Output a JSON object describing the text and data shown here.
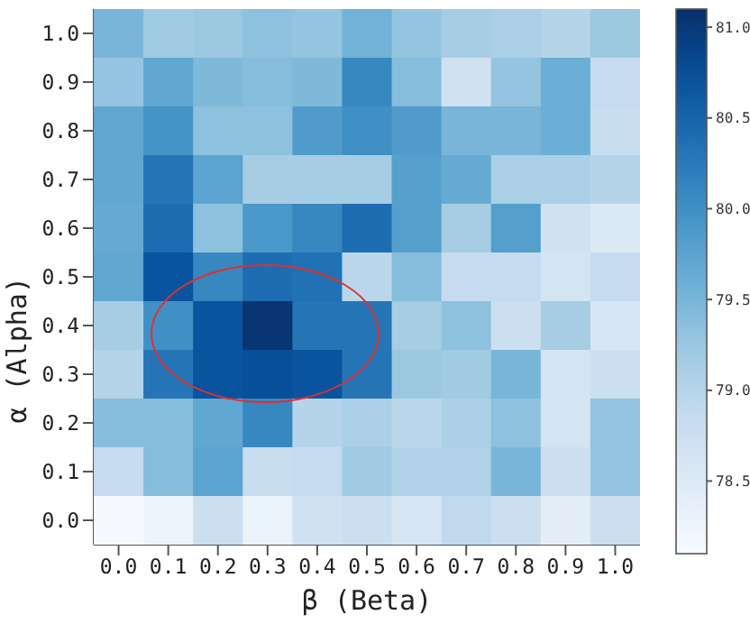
{
  "chart_data": {
    "type": "heatmap",
    "xlabel": "β (Beta)",
    "ylabel": "α (Alpha)",
    "categories": [
      "0.0",
      "0.1",
      "0.2",
      "0.3",
      "0.4",
      "0.5",
      "0.6",
      "0.7",
      "0.8",
      "0.9",
      "1.0"
    ],
    "y_categories": [
      "1.0",
      "0.9",
      "0.8",
      "0.7",
      "0.6",
      "0.5",
      "0.4",
      "0.3",
      "0.2",
      "0.1",
      "0.0"
    ],
    "cells": [
      [
        79.5,
        79.2,
        79.25,
        79.35,
        79.3,
        79.55,
        79.3,
        79.15,
        79.1,
        79.0,
        79.25
      ],
      [
        79.3,
        79.7,
        79.45,
        79.4,
        79.45,
        80.1,
        79.4,
        78.7,
        79.3,
        79.6,
        78.85
      ],
      [
        79.7,
        79.95,
        79.35,
        79.35,
        79.85,
        80.0,
        79.85,
        79.5,
        79.5,
        79.6,
        78.8
      ],
      [
        79.7,
        80.3,
        79.75,
        79.15,
        79.15,
        79.15,
        79.8,
        79.65,
        79.1,
        79.1,
        79.0
      ],
      [
        79.65,
        80.4,
        79.35,
        79.9,
        80.1,
        80.4,
        79.8,
        79.15,
        79.8,
        78.7,
        78.5
      ],
      [
        79.7,
        80.7,
        80.1,
        80.4,
        80.35,
        78.95,
        79.4,
        78.85,
        78.85,
        78.65,
        78.85
      ],
      [
        79.15,
        80.0,
        80.7,
        81.05,
        80.3,
        80.3,
        79.15,
        79.35,
        78.75,
        79.15,
        78.6
      ],
      [
        79.0,
        80.3,
        80.7,
        80.75,
        80.7,
        80.3,
        79.25,
        79.2,
        79.5,
        78.65,
        78.75
      ],
      [
        79.4,
        79.4,
        79.7,
        80.1,
        79.0,
        79.1,
        78.95,
        79.1,
        79.35,
        78.65,
        79.3
      ],
      [
        78.85,
        79.4,
        79.75,
        78.8,
        78.85,
        79.2,
        79.05,
        79.05,
        79.5,
        78.75,
        79.3
      ],
      [
        78.12,
        78.25,
        78.75,
        78.3,
        78.7,
        78.75,
        78.6,
        78.9,
        78.75,
        78.4,
        78.75
      ]
    ],
    "clim": [
      78.1,
      81.1
    ],
    "cticks": [
      {
        "value": 78.5,
        "label": "78.5"
      },
      {
        "value": 79,
        "label": "79.0"
      },
      {
        "value": 79.5,
        "label": "79.5"
      },
      {
        "value": 80,
        "label": "80.0"
      },
      {
        "value": 80.5,
        "label": "80.5"
      },
      {
        "value": 81,
        "label": "81.0"
      }
    ]
  }
}
